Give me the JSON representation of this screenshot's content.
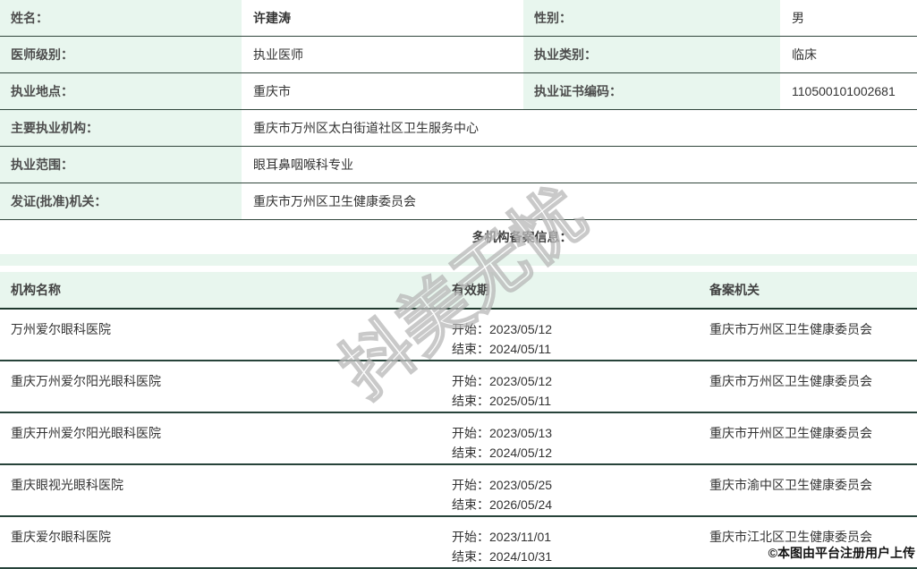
{
  "info": {
    "rows_paired": [
      {
        "label1": "姓名：",
        "value1": "许建涛",
        "label2": "性别：",
        "value2": "男"
      },
      {
        "label1": "医师级别：",
        "value1": "执业医师",
        "label2": "执业类别：",
        "value2": "临床"
      },
      {
        "label1": "执业地点：",
        "value1": "重庆市",
        "label2": "执业证书编码：",
        "value2": "110500101002681"
      }
    ],
    "rows_full": [
      {
        "label": "主要执业机构：",
        "value": "重庆市万州区太白街道社区卫生服务中心"
      },
      {
        "label": "执业范围：",
        "value": "眼耳鼻咽喉科专业"
      },
      {
        "label": "发证(批准)机关：",
        "value": "重庆市万州区卫生健康委员会"
      }
    ]
  },
  "section": {
    "title": "多机构备案信息："
  },
  "table": {
    "headers": {
      "org": "机构名称",
      "validity": "有效期",
      "authority": "备案机关"
    },
    "rows": [
      {
        "org": "万州爱尔眼科医院",
        "start": "开始：2023/05/12",
        "end": "结束：2024/05/11",
        "authority": "重庆市万州区卫生健康委员会"
      },
      {
        "org": "重庆万州爱尔阳光眼科医院",
        "start": "开始：2023/05/12",
        "end": "结束：2025/05/11",
        "authority": "重庆市万州区卫生健康委员会"
      },
      {
        "org": "重庆开州爱尔阳光眼科医院",
        "start": "开始：2023/05/13",
        "end": "结束：2024/05/12",
        "authority": "重庆市开州区卫生健康委员会"
      },
      {
        "org": "重庆眼视光眼科医院",
        "start": "开始：2023/05/25",
        "end": "结束：2026/05/24",
        "authority": "重庆市渝中区卫生健康委员会"
      },
      {
        "org": "重庆爱尔眼科医院",
        "start": "开始：2023/11/01",
        "end": "结束：2024/10/31",
        "authority": "重庆市江北区卫生健康委员会"
      }
    ]
  },
  "watermark": {
    "diagonal": "抖美无忧",
    "credit": "©本图由平台注册用户上传"
  },
  "colors": {
    "label_bg": "#e8f6ee",
    "divider": "#31463c",
    "header_rule": "#1f3a2e",
    "text": "#333333",
    "label_text": "#4d4d4d"
  }
}
